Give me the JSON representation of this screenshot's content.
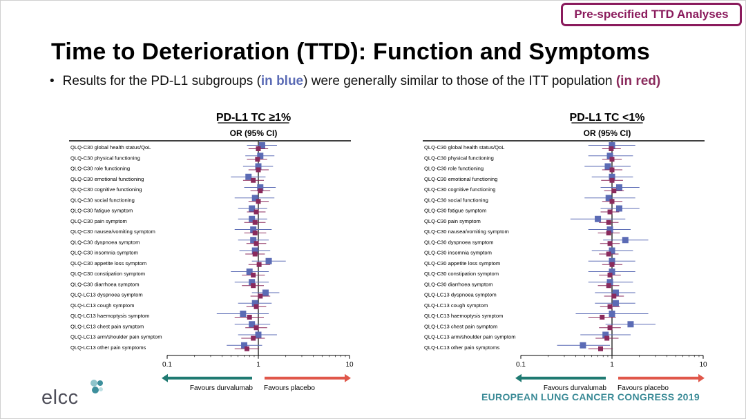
{
  "badge": "Pre-specified TTD Analyses",
  "title": "Time to Deterioration (TTD): Function and Symptoms",
  "bullet": {
    "prefix": "Results for the PD-L1 subgroups (",
    "blue": "in blue",
    "middle": ") were generally similar to those of the ITT population ",
    "red": "(in red)"
  },
  "logo_text": "elcc",
  "footer": "EUROPEAN LUNG CANCER CONGRESS 2019",
  "colors": {
    "pdl1": "#5b6bb5",
    "itt": "#8a2a5c",
    "durvalumab_arrow": "#1f7a72",
    "placebo_arrow": "#e0574a",
    "badge": "#8a1a5c"
  },
  "chart_data": [
    {
      "type": "forest",
      "title": "PD-L1 TC ≥1%",
      "subtitle": "OR (95% CI)",
      "scale": "log",
      "xlim": [
        0.1,
        10
      ],
      "xticks": [
        "0.1",
        "1",
        "10"
      ],
      "reference": 1,
      "favours_left": "Favours durvalumab",
      "favours_right": "Favours placebo",
      "labels": [
        "QLQ-C30 global health status/QoL",
        "QLQ-C30 physical functioning",
        "QLQ-C30 role functioning",
        "QLQ-C30 emotional functioning",
        "QLQ-C30 cognitive functioning",
        "QLQ-C30 social functioning",
        "QLQ-C30 fatigue symptom",
        "QLQ-C30 pain symptom",
        "QLQ-C30 nausea/vomiting symptom",
        "QLQ-C30 dyspnoea symptom",
        "QLQ-C30 insomnia symptom",
        "QLQ-C30 appetite loss symptom",
        "QLQ-C30 constipation symptom",
        "QLQ-C30 diarrhoea symptom",
        "QLQ-LC13 dyspnoea symptom",
        "QLQ-LC13 cough symptom",
        "QLQ-LC13 haemoptysis symptom",
        "QLQ-LC13 chest pain symptom",
        "QLQ-LC13 arm/shoulder pain symptom",
        "QLQ-LC13 other pain symptoms"
      ],
      "series": [
        {
          "name": "PD-L1 subgroup",
          "or": [
            1.1,
            1.05,
            1.0,
            0.78,
            1.05,
            0.92,
            0.85,
            0.85,
            0.88,
            0.88,
            0.92,
            1.3,
            0.8,
            0.85,
            1.2,
            0.92,
            0.68,
            0.85,
            1.0,
            0.7
          ],
          "lo": [
            0.75,
            0.72,
            0.68,
            0.5,
            0.7,
            0.55,
            0.6,
            0.6,
            0.55,
            0.6,
            0.62,
            0.85,
            0.5,
            0.55,
            0.85,
            0.6,
            0.35,
            0.55,
            0.6,
            0.45
          ],
          "hi": [
            1.6,
            1.5,
            1.45,
            1.2,
            1.55,
            1.5,
            1.25,
            1.25,
            1.4,
            1.3,
            1.35,
            2.0,
            1.3,
            1.3,
            1.7,
            1.4,
            1.3,
            1.35,
            1.6,
            1.1
          ]
        },
        {
          "name": "ITT",
          "or": [
            1.0,
            0.98,
            1.0,
            0.88,
            1.05,
            1.0,
            0.95,
            0.92,
            0.92,
            0.95,
            0.92,
            1.02,
            0.88,
            0.88,
            1.05,
            0.95,
            0.8,
            0.95,
            0.88,
            0.75
          ],
          "lo": [
            0.78,
            0.75,
            0.78,
            0.68,
            0.82,
            0.78,
            0.75,
            0.7,
            0.7,
            0.74,
            0.72,
            0.78,
            0.66,
            0.66,
            0.82,
            0.74,
            0.55,
            0.72,
            0.65,
            0.55
          ],
          "hi": [
            1.28,
            1.25,
            1.3,
            1.15,
            1.35,
            1.3,
            1.2,
            1.2,
            1.22,
            1.22,
            1.18,
            1.35,
            1.18,
            1.15,
            1.35,
            1.22,
            1.15,
            1.25,
            1.18,
            1.02
          ]
        }
      ]
    },
    {
      "type": "forest",
      "title": "PD-L1 TC <1%",
      "subtitle": "OR (95% CI)",
      "scale": "log",
      "xlim": [
        0.1,
        10
      ],
      "xticks": [
        "0.1",
        "1",
        "10"
      ],
      "reference": 1,
      "favours_left": "Favours durvalumab",
      "favours_right": "Favours placebo",
      "labels": [
        "QLQ-C30 global health status/QoL",
        "QLQ-C30 physical functioning",
        "QLQ-C30 role functioning",
        "QLQ-C30 emotional functioning",
        "QLQ-C30 cognitive functioning",
        "QLQ-C30 social functioning",
        "QLQ-C30 fatigue symptom",
        "QLQ-C30 pain symptom",
        "QLQ-C30 nausea/vomiting symptom",
        "QLQ-C30 dyspnoea symptom",
        "QLQ-C30 insomnia symptom",
        "QLQ-C30 appetite loss symptom",
        "QLQ-C30 constipation symptom",
        "QLQ-C30 diarrhoea symptom",
        "QLQ-LC13 dyspnoea symptom",
        "QLQ-LC13 cough symptom",
        "QLQ-LC13 haemoptysis symptom",
        "QLQ-LC13 chest pain symptom",
        "QLQ-LC13 arm/shoulder pain symptom",
        "QLQ-LC13 other pain symptoms"
      ],
      "series": [
        {
          "name": "PD-L1 subgroup",
          "or": [
            1.0,
            0.95,
            0.9,
            1.0,
            1.2,
            0.92,
            1.2,
            0.7,
            0.95,
            1.4,
            1.0,
            1.0,
            1.0,
            0.95,
            1.1,
            1.1,
            1.0,
            1.6,
            0.85,
            0.48
          ],
          "lo": [
            0.55,
            0.55,
            0.5,
            0.6,
            0.75,
            0.5,
            0.75,
            0.35,
            0.55,
            0.8,
            0.6,
            0.55,
            0.55,
            0.55,
            0.65,
            0.65,
            0.4,
            0.85,
            0.45,
            0.25
          ],
          "hi": [
            1.8,
            1.7,
            1.6,
            1.7,
            2.0,
            1.8,
            2.0,
            1.4,
            1.6,
            2.5,
            1.7,
            1.8,
            1.8,
            1.7,
            1.8,
            1.8,
            2.5,
            3.0,
            1.6,
            0.95
          ]
        },
        {
          "name": "ITT",
          "or": [
            0.98,
            1.0,
            1.0,
            1.0,
            1.05,
            1.0,
            0.95,
            0.92,
            0.92,
            0.95,
            0.92,
            1.0,
            0.95,
            0.92,
            1.05,
            0.95,
            0.78,
            0.95,
            0.88,
            0.75
          ],
          "lo": [
            0.78,
            0.78,
            0.78,
            0.76,
            0.82,
            0.78,
            0.75,
            0.72,
            0.7,
            0.74,
            0.72,
            0.78,
            0.72,
            0.7,
            0.82,
            0.74,
            0.55,
            0.72,
            0.66,
            0.55
          ],
          "hi": [
            1.25,
            1.28,
            1.3,
            1.32,
            1.35,
            1.3,
            1.2,
            1.18,
            1.22,
            1.22,
            1.18,
            1.3,
            1.25,
            1.2,
            1.35,
            1.22,
            1.1,
            1.25,
            1.18,
            1.02
          ]
        }
      ]
    }
  ]
}
